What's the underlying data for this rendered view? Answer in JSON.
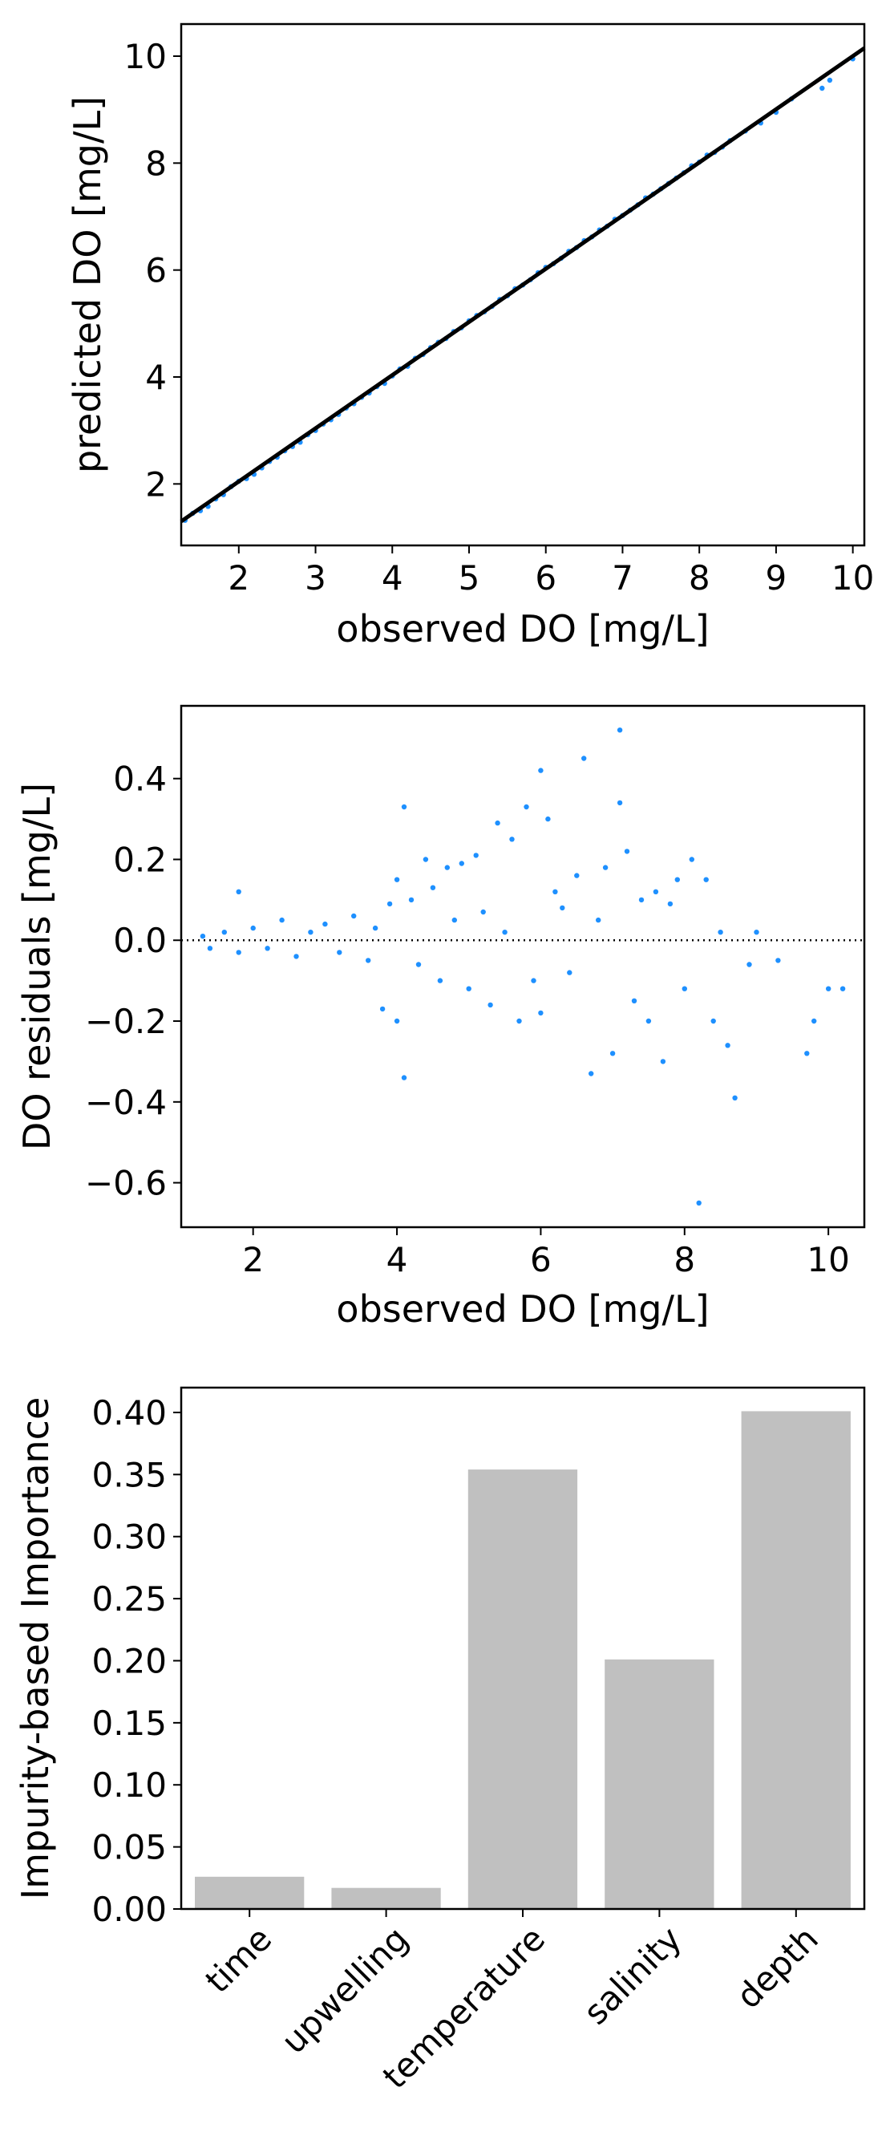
{
  "colors": {
    "points": "#1e90ff",
    "fit_line": "#000000",
    "zero_line": "#000000",
    "bars": "#c0c0c0",
    "axes": "#000000"
  },
  "chart_data": [
    {
      "type": "scatter",
      "title": "",
      "xlabel": "observed DO [mg/L]",
      "ylabel": "predicted DO [mg/L]",
      "xlim": [
        1.25,
        10.15
      ],
      "ylim": [
        0.85,
        10.6
      ],
      "xticks": [
        2,
        3,
        4,
        5,
        6,
        7,
        8,
        9,
        10
      ],
      "yticks": [
        2,
        4,
        6,
        8,
        10
      ],
      "reference_line": {
        "label": "1:1 line",
        "x": [
          1.25,
          10.15
        ],
        "y": [
          1.3,
          10.15
        ]
      },
      "x": [
        1.3,
        1.4,
        1.5,
        1.6,
        1.7,
        1.8,
        1.9,
        2.0,
        2.1,
        2.2,
        2.3,
        2.4,
        2.5,
        2.6,
        2.7,
        2.8,
        2.9,
        3.0,
        3.1,
        3.2,
        3.3,
        3.4,
        3.5,
        3.6,
        3.7,
        3.8,
        3.9,
        4.0,
        4.1,
        4.2,
        4.3,
        4.4,
        4.5,
        4.6,
        4.7,
        4.8,
        4.9,
        5.0,
        5.1,
        5.2,
        5.3,
        5.4,
        5.5,
        5.6,
        5.7,
        5.8,
        5.9,
        6.0,
        6.1,
        6.2,
        6.3,
        6.4,
        6.5,
        6.6,
        6.7,
        6.8,
        6.9,
        7.0,
        7.1,
        7.2,
        7.3,
        7.4,
        7.5,
        7.6,
        7.7,
        7.8,
        7.9,
        8.0,
        8.1,
        8.2,
        8.3,
        8.4,
        8.6,
        8.8,
        9.0,
        9.2,
        9.6,
        9.7,
        10.0
      ],
      "y": [
        1.32,
        1.45,
        1.5,
        1.58,
        1.72,
        1.8,
        1.95,
        2.05,
        2.1,
        2.18,
        2.3,
        2.42,
        2.5,
        2.62,
        2.7,
        2.78,
        2.92,
        3.0,
        3.12,
        3.2,
        3.3,
        3.42,
        3.5,
        3.62,
        3.7,
        3.82,
        3.88,
        4.02,
        4.15,
        4.2,
        4.35,
        4.42,
        4.55,
        4.65,
        4.72,
        4.85,
        4.92,
        5.05,
        5.15,
        5.22,
        5.32,
        5.45,
        5.52,
        5.65,
        5.72,
        5.82,
        5.95,
        6.05,
        6.12,
        6.22,
        6.35,
        6.42,
        6.55,
        6.62,
        6.75,
        6.82,
        6.95,
        7.02,
        7.12,
        7.22,
        7.35,
        7.42,
        7.52,
        7.62,
        7.72,
        7.82,
        7.95,
        8.02,
        8.15,
        8.2,
        8.3,
        8.42,
        8.6,
        8.75,
        8.95,
        9.2,
        9.4,
        9.55,
        9.95
      ]
    },
    {
      "type": "scatter",
      "title": "",
      "xlabel": "observed DO [mg/L]",
      "ylabel": "DO residuals [mg/L]",
      "xlim": [
        1.0,
        10.5
      ],
      "ylim": [
        -0.71,
        0.58
      ],
      "xticks": [
        2,
        4,
        6,
        8,
        10
      ],
      "yticks": [
        -0.6,
        -0.4,
        -0.2,
        0.0,
        0.2,
        0.4
      ],
      "reference_line": {
        "label": "zero",
        "y": 0.0,
        "style": "dotted"
      },
      "x": [
        1.3,
        1.4,
        1.6,
        1.8,
        1.8,
        2.0,
        2.2,
        2.4,
        2.6,
        2.8,
        3.0,
        3.2,
        3.4,
        3.6,
        3.7,
        3.8,
        3.9,
        4.0,
        4.0,
        4.1,
        4.1,
        4.2,
        4.3,
        4.4,
        4.5,
        4.6,
        4.7,
        4.8,
        4.9,
        5.0,
        5.1,
        5.2,
        5.3,
        5.4,
        5.5,
        5.6,
        5.7,
        5.8,
        5.9,
        6.0,
        6.0,
        6.1,
        6.2,
        6.3,
        6.4,
        6.5,
        6.6,
        6.7,
        6.8,
        6.9,
        7.0,
        7.1,
        7.1,
        7.2,
        7.3,
        7.4,
        7.5,
        7.6,
        7.7,
        7.8,
        7.9,
        8.0,
        8.1,
        8.2,
        8.3,
        8.4,
        8.5,
        8.6,
        8.7,
        8.9,
        9.0,
        9.3,
        9.7,
        9.8,
        10.0,
        10.2
      ],
      "y": [
        0.01,
        -0.02,
        0.02,
        0.12,
        -0.03,
        0.03,
        -0.02,
        0.05,
        -0.04,
        0.02,
        0.04,
        -0.03,
        0.06,
        -0.05,
        0.03,
        -0.17,
        0.09,
        0.15,
        -0.2,
        -0.34,
        0.33,
        0.1,
        -0.06,
        0.2,
        0.13,
        -0.1,
        0.18,
        0.05,
        0.19,
        -0.12,
        0.21,
        0.07,
        -0.16,
        0.29,
        0.02,
        0.25,
        -0.2,
        0.33,
        -0.1,
        0.42,
        -0.18,
        0.3,
        0.12,
        0.08,
        -0.08,
        0.16,
        0.45,
        -0.33,
        0.05,
        0.18,
        -0.28,
        0.52,
        0.34,
        0.22,
        -0.15,
        0.1,
        -0.2,
        0.12,
        -0.3,
        0.09,
        0.15,
        -0.12,
        0.2,
        -0.65,
        0.15,
        -0.2,
        0.02,
        -0.26,
        -0.39,
        -0.06,
        0.02,
        -0.05,
        -0.28,
        -0.2,
        -0.12,
        -0.12
      ]
    },
    {
      "type": "bar",
      "title": "",
      "xlabel": "",
      "ylabel": "Impurity-based Importance",
      "categories": [
        "time",
        "upwelling",
        "temperature",
        "salinity",
        "depth"
      ],
      "values": [
        0.026,
        0.017,
        0.354,
        0.201,
        0.401
      ],
      "ylim": [
        0.0,
        0.42
      ],
      "yticks": [
        "0.00",
        "0.05",
        "0.10",
        "0.15",
        "0.20",
        "0.25",
        "0.30",
        "0.35",
        "0.40"
      ]
    }
  ]
}
